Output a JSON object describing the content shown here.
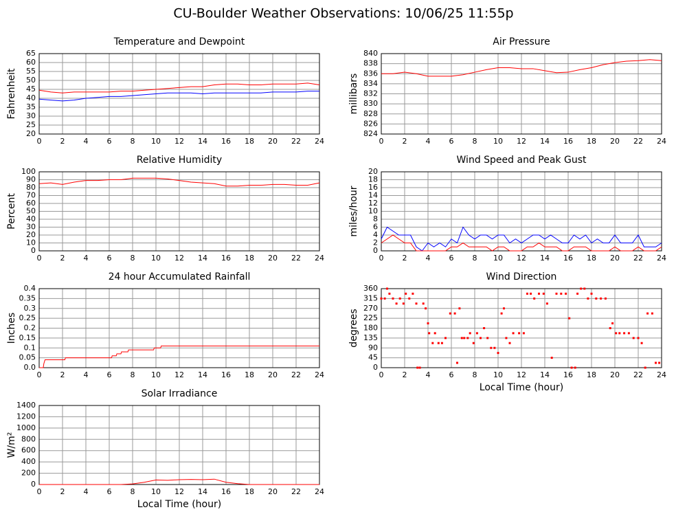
{
  "title": "CU-Boulder Weather Observations: 10/06/25 11:55p",
  "chart_data": [
    {
      "type": "line",
      "title": "Temperature and Dewpoint",
      "ylabel": "Fahrenheit",
      "x": [
        0,
        1,
        2,
        3,
        4,
        5,
        6,
        7,
        8,
        9,
        10,
        11,
        12,
        13,
        14,
        15,
        16,
        17,
        18,
        19,
        20,
        21,
        22,
        23,
        24
      ],
      "xlim": [
        0,
        24
      ],
      "xticks": [
        0,
        2,
        4,
        6,
        8,
        10,
        12,
        14,
        16,
        18,
        20,
        22,
        24
      ],
      "ylim": [
        20,
        65
      ],
      "yticks": [
        20,
        25,
        30,
        35,
        40,
        45,
        50,
        55,
        60,
        65
      ],
      "grid": true,
      "series": [
        {
          "color": "#ff0000",
          "values": [
            44.5,
            43.5,
            43,
            43.5,
            43.5,
            43.5,
            43.5,
            44,
            44,
            44.5,
            45,
            45.5,
            46,
            46.5,
            46.5,
            47.5,
            48,
            48,
            47.5,
            47.5,
            48,
            48,
            48,
            48.5,
            47.5
          ]
        },
        {
          "color": "#0000ff",
          "values": [
            39.5,
            39,
            38.5,
            39,
            40,
            40.5,
            41,
            41,
            41.5,
            42,
            42.5,
            43,
            43,
            43,
            42.5,
            43,
            43,
            43,
            43,
            43,
            43.5,
            43.5,
            43.5,
            44,
            44
          ]
        }
      ]
    },
    {
      "type": "line",
      "title": "Air Pressure",
      "ylabel": "millibars",
      "x": [
        0,
        1,
        2,
        3,
        4,
        5,
        6,
        7,
        8,
        9,
        10,
        11,
        12,
        13,
        14,
        15,
        16,
        17,
        18,
        19,
        20,
        21,
        22,
        23,
        24
      ],
      "xlim": [
        0,
        24
      ],
      "xticks": [
        0,
        2,
        4,
        6,
        8,
        10,
        12,
        14,
        16,
        18,
        20,
        22,
        24
      ],
      "ylim": [
        824,
        840
      ],
      "yticks": [
        824,
        826,
        828,
        830,
        832,
        834,
        836,
        838,
        840
      ],
      "grid": true,
      "series": [
        {
          "color": "#ff0000",
          "values": [
            836,
            836,
            836.3,
            836,
            835.5,
            835.5,
            835.5,
            835.8,
            836.3,
            836.8,
            837.2,
            837.2,
            837,
            837,
            836.6,
            836.2,
            836.3,
            836.8,
            837.2,
            837.8,
            838.2,
            838.5,
            838.6,
            838.8,
            838.6
          ]
        }
      ]
    },
    {
      "type": "line",
      "title": "Relative Humidity",
      "ylabel": "Percent",
      "x": [
        0,
        1,
        2,
        3,
        4,
        5,
        6,
        7,
        8,
        9,
        10,
        11,
        12,
        13,
        14,
        15,
        16,
        17,
        18,
        19,
        20,
        21,
        22,
        23,
        24
      ],
      "xlim": [
        0,
        24
      ],
      "xticks": [
        0,
        2,
        4,
        6,
        8,
        10,
        12,
        14,
        16,
        18,
        20,
        22,
        24
      ],
      "ylim": [
        0,
        100
      ],
      "yticks": [
        0,
        10,
        20,
        30,
        40,
        50,
        60,
        70,
        80,
        90,
        100
      ],
      "grid": true,
      "series": [
        {
          "color": "#ff0000",
          "values": [
            85,
            86,
            84,
            87,
            89,
            89,
            90,
            90,
            92,
            92,
            92,
            91,
            89,
            87,
            86,
            85,
            82,
            82,
            83,
            83,
            84,
            84,
            83,
            83,
            86
          ]
        }
      ]
    },
    {
      "type": "line",
      "title": "Wind Speed and Peak Gust",
      "ylabel": "miles/hour",
      "x": [
        0,
        0.5,
        1,
        1.5,
        2,
        2.5,
        3,
        3.5,
        4,
        4.5,
        5,
        5.5,
        6,
        6.5,
        7,
        7.5,
        8,
        8.5,
        9,
        9.5,
        10,
        10.5,
        11,
        11.5,
        12,
        12.5,
        13,
        13.5,
        14,
        14.5,
        15,
        15.5,
        16,
        16.5,
        17,
        17.5,
        18,
        18.5,
        19,
        19.5,
        20,
        20.5,
        21,
        21.5,
        22,
        22.5,
        23,
        23.5,
        24
      ],
      "xlim": [
        0,
        24
      ],
      "xticks": [
        0,
        2,
        4,
        6,
        8,
        10,
        12,
        14,
        16,
        18,
        20,
        22,
        24
      ],
      "ylim": [
        0,
        20
      ],
      "yticks": [
        0,
        2,
        4,
        6,
        8,
        10,
        12,
        14,
        16,
        18,
        20
      ],
      "grid": true,
      "series": [
        {
          "color": "#0000ff",
          "values": [
            3,
            6,
            5,
            4,
            4,
            4,
            1,
            0,
            2,
            1,
            2,
            1,
            3,
            2,
            6,
            4,
            3,
            4,
            4,
            3,
            4,
            4,
            2,
            3,
            2,
            3,
            4,
            4,
            3,
            4,
            3,
            2,
            2,
            4,
            3,
            4,
            2,
            3,
            2,
            2,
            4,
            2,
            2,
            2,
            4,
            1,
            1,
            1,
            2
          ]
        },
        {
          "color": "#ff0000",
          "values": [
            2,
            3,
            4,
            3,
            2,
            2,
            0,
            0,
            0,
            0,
            0,
            0,
            1,
            1,
            2,
            1,
            1,
            1,
            1,
            0,
            1,
            1,
            0,
            0,
            0,
            1,
            1,
            2,
            1,
            1,
            1,
            0,
            0,
            1,
            1,
            1,
            0,
            0,
            0,
            0,
            1,
            0,
            0,
            0,
            1,
            0,
            0,
            0,
            1
          ]
        }
      ]
    },
    {
      "type": "line",
      "title": "24 hour Accumulated Rainfall",
      "ylabel": "Inches",
      "x": [
        0,
        0.35,
        0.4,
        0.5,
        2.2,
        2.25,
        6.2,
        6.25,
        6.6,
        6.65,
        7.0,
        7.05,
        7.6,
        7.65,
        9.8,
        9.85,
        10.4,
        10.45,
        24
      ],
      "xlim": [
        0,
        24
      ],
      "xticks": [
        0,
        2,
        4,
        6,
        8,
        10,
        12,
        14,
        16,
        18,
        20,
        22,
        24
      ],
      "ylim": [
        0,
        0.4
      ],
      "yticks": [
        {
          "value": 0,
          "label": "0.0"
        },
        0.05,
        0.1,
        0.15,
        0.2,
        0.25,
        0.3,
        0.35,
        0.4
      ],
      "grid": true,
      "series": [
        {
          "color": "#ff0000",
          "values": [
            0,
            0,
            0.02,
            0.04,
            0.04,
            0.05,
            0.05,
            0.06,
            0.06,
            0.07,
            0.07,
            0.08,
            0.08,
            0.09,
            0.09,
            0.1,
            0.1,
            0.11,
            0.11
          ]
        }
      ]
    },
    {
      "type": "scatter",
      "title": "Wind Direction",
      "ylabel": "degrees",
      "xlabel": "Local Time (hour)",
      "x": [
        0,
        0.3,
        0.5,
        0.7,
        1,
        1.3,
        1.6,
        1.9,
        2.1,
        2.4,
        2.7,
        3,
        3.1,
        3.3,
        3.6,
        3.8,
        4,
        4.1,
        4.4,
        4.6,
        4.9,
        5.2,
        5.5,
        5.9,
        6.3,
        6.5,
        6.7,
        6.9,
        7.1,
        7.4,
        7.6,
        7.9,
        8.2,
        8.5,
        8.8,
        9.1,
        9.4,
        9.7,
        10,
        10.3,
        10.5,
        10.7,
        11,
        11.3,
        11.8,
        12.2,
        12.5,
        12.8,
        13.1,
        13.5,
        13.9,
        14.2,
        14.6,
        15,
        15.4,
        15.8,
        16.1,
        16.3,
        16.6,
        16.8,
        17.1,
        17.4,
        17.7,
        18,
        18.4,
        18.8,
        19.2,
        19.6,
        19.8,
        20.1,
        20.4,
        20.8,
        21.2,
        21.6,
        22,
        22.3,
        22.6,
        22.8,
        23.2,
        23.5,
        23.8
      ],
      "xlim": [
        0,
        24
      ],
      "xticks": [
        0,
        2,
        4,
        6,
        8,
        10,
        12,
        14,
        16,
        18,
        20,
        22,
        24
      ],
      "ylim": [
        0,
        360
      ],
      "yticks": [
        0,
        45,
        90,
        135,
        180,
        225,
        270,
        315,
        360
      ],
      "grid": true,
      "color": "#ff0000",
      "values": [
        315,
        315,
        360,
        337,
        315,
        292,
        315,
        292,
        337,
        315,
        337,
        292,
        0,
        0,
        292,
        270,
        202,
        157,
        112,
        157,
        112,
        112,
        135,
        247,
        247,
        22,
        270,
        135,
        135,
        135,
        157,
        112,
        157,
        135,
        180,
        135,
        90,
        90,
        67,
        247,
        270,
        135,
        112,
        157,
        157,
        157,
        337,
        337,
        315,
        337,
        337,
        292,
        45,
        337,
        337,
        337,
        225,
        0,
        0,
        337,
        360,
        360,
        315,
        337,
        315,
        315,
        315,
        180,
        202,
        157,
        157,
        157,
        157,
        135,
        135,
        112,
        0,
        247,
        247,
        22,
        22
      ]
    },
    {
      "type": "line",
      "title": "Solar Irradiance",
      "ylabel": "W/m²",
      "xlabel": "Local Time (hour)",
      "x": [
        0,
        1,
        2,
        3,
        4,
        5,
        6,
        7,
        8,
        9,
        10,
        11,
        12,
        13,
        14,
        15,
        16,
        17,
        18,
        19,
        20,
        21,
        22,
        23,
        24
      ],
      "xlim": [
        0,
        24
      ],
      "xticks": [
        0,
        2,
        4,
        6,
        8,
        10,
        12,
        14,
        16,
        18,
        20,
        22,
        24
      ],
      "ylim": [
        0,
        1400
      ],
      "yticks": [
        0,
        200,
        400,
        600,
        800,
        1000,
        1200,
        1400
      ],
      "grid": true,
      "series": [
        {
          "color": "#ff0000",
          "values": [
            0,
            0,
            0,
            0,
            0,
            0,
            0,
            0,
            10,
            40,
            80,
            75,
            85,
            90,
            85,
            95,
            40,
            15,
            0,
            0,
            0,
            0,
            0,
            0,
            0
          ]
        }
      ]
    }
  ]
}
